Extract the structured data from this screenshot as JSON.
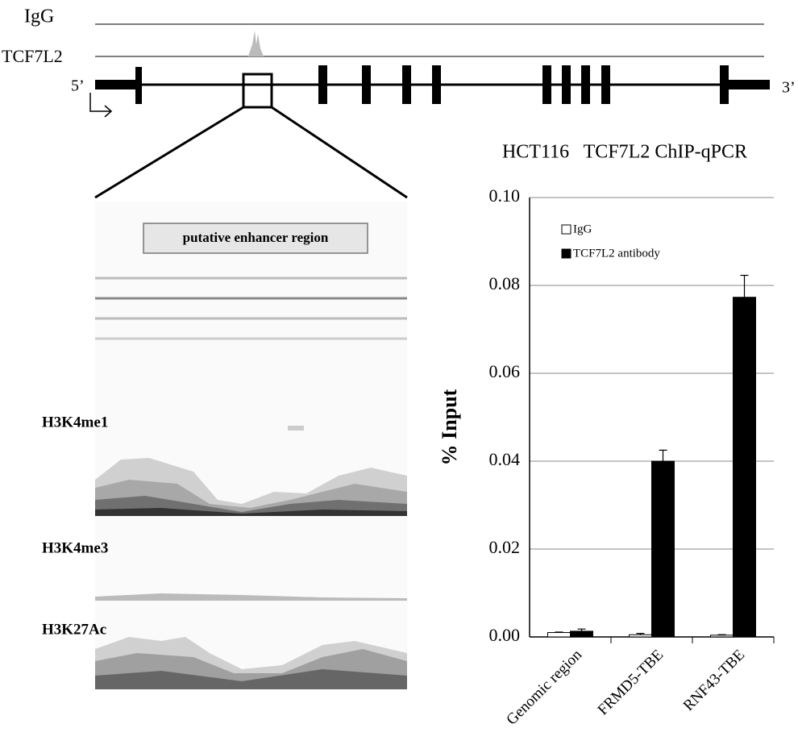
{
  "figure": {
    "igg_label": "IgG",
    "tcf_label": "TCF7L2",
    "five_prime": "5’",
    "three_prime": "3’",
    "enhancer_label": "putative enhancer region",
    "track_labels": [
      "H3K4me1",
      "H3K4me3",
      "H3K27Ac"
    ]
  },
  "chart_data": {
    "type": "bar",
    "title": "HCT116   TCF7L2 ChIP-qPCR",
    "ylabel": "% Input",
    "categories": [
      "Genomic region",
      "FRMD5-TBE",
      "RNF43-TBE"
    ],
    "series": [
      {
        "name": "IgG",
        "color": "#ffffff",
        "values": [
          0.001,
          0.0005,
          0.0004
        ],
        "errors": [
          0.0001,
          0.0003,
          0.0001
        ]
      },
      {
        "name": "TCF7L2 antibody",
        "color": "#000000",
        "values": [
          0.0013,
          0.04,
          0.0773
        ],
        "errors": [
          0.0005,
          0.0025,
          0.005
        ]
      }
    ],
    "ylim": [
      0,
      0.1
    ],
    "yticks": [
      {
        "value": 0,
        "label": "0.00"
      },
      {
        "value": 0.02,
        "label": "0.02"
      },
      {
        "value": 0.04,
        "label": "0.04"
      },
      {
        "value": 0.06,
        "label": "0.06"
      },
      {
        "value": 0.08,
        "label": "0.08"
      },
      {
        "value": 0.1,
        "label": "0.10"
      }
    ],
    "grid": true,
    "legend": "upper left"
  }
}
